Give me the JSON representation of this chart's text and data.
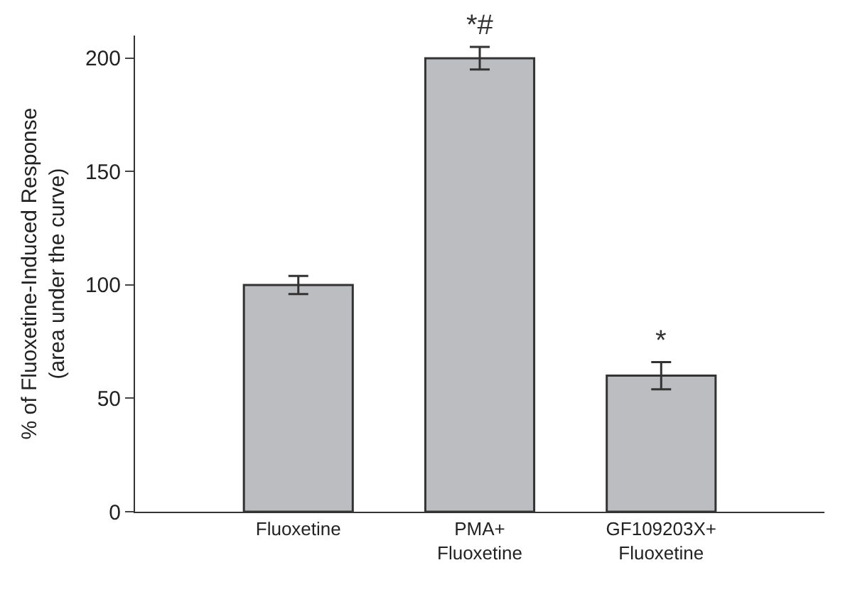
{
  "chart_data": {
    "type": "bar",
    "ylabel": "% of Fluoxetine-Induced Response\n(area under the curve)",
    "categories": [
      "Fluoxetine",
      "PMA+\nFluoxetine",
      "GF109203X+\nFluoxetine"
    ],
    "values": [
      100,
      200,
      60
    ],
    "color": "#bcbdc1",
    "errors": [
      4,
      5,
      6
    ],
    "ylim": [
      0,
      210
    ],
    "yticks": [
      0,
      50,
      100,
      150,
      200
    ],
    "grid": false,
    "annotations": [
      {
        "text": "*#",
        "x": "PMA+\nFluoxetine",
        "y": 205
      },
      {
        "text": "*",
        "x": "GF109203X+\nFluoxetine",
        "y": 66
      }
    ]
  }
}
